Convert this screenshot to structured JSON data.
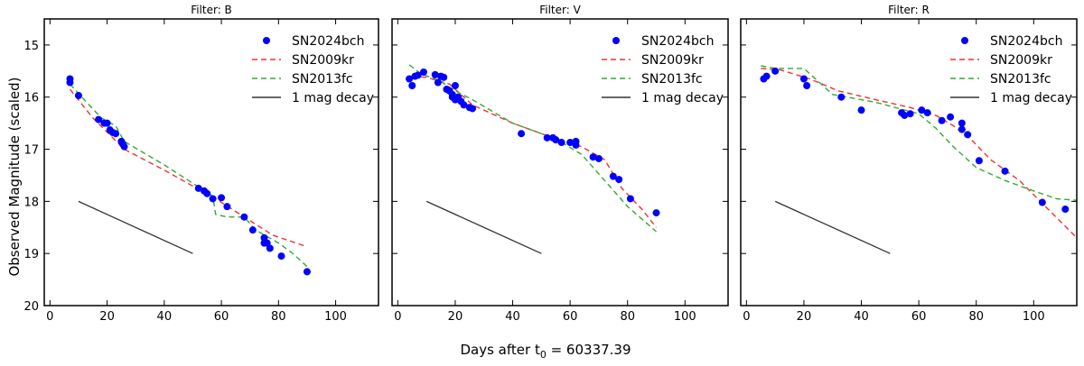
{
  "figure": {
    "ylabel": "Observed Magnitude (scaled)",
    "xlabel_prefix": "Days after t",
    "xlabel_subscript": "0",
    "xlabel_suffix": " = 60337.39"
  },
  "chart_data": [
    {
      "type": "scatter",
      "title": "Filter: B",
      "xlim": [
        -2,
        115
      ],
      "ylim": [
        20,
        14.5
      ],
      "ylim_note": "y axis inverted (brighter = up)",
      "x_ticks": [
        0,
        20,
        40,
        60,
        80,
        100
      ],
      "y_ticks": [
        15,
        16,
        17,
        18,
        19,
        20
      ],
      "legend_position": "top-right",
      "series": [
        {
          "name": "SN2024bch",
          "kind": "points",
          "color": "#0000ff",
          "x": [
            7,
            7,
            10,
            17,
            19,
            20,
            21,
            22,
            23,
            25,
            25.5,
            26,
            52,
            54,
            55,
            57,
            60,
            62,
            68,
            71,
            75,
            75,
            76,
            77,
            81,
            90
          ],
          "y": [
            15.65,
            15.72,
            15.97,
            16.43,
            16.5,
            16.5,
            16.63,
            16.68,
            16.7,
            16.85,
            16.9,
            16.95,
            17.75,
            17.8,
            17.85,
            17.95,
            17.93,
            18.1,
            18.3,
            18.55,
            18.7,
            18.8,
            18.8,
            18.9,
            19.05,
            19.35
          ]
        },
        {
          "name": "SN2009kr",
          "kind": "line",
          "color": "#ee3333",
          "dash": "6,4",
          "x": [
            7,
            15,
            26,
            40,
            58,
            68,
            78,
            90
          ],
          "y": [
            15.85,
            16.4,
            17.0,
            17.4,
            17.95,
            18.3,
            18.65,
            18.87
          ]
        },
        {
          "name": "SN2013fc",
          "kind": "line",
          "color": "#33aa33",
          "dash": "6,4",
          "x": [
            7,
            12,
            18,
            23,
            26,
            40,
            57,
            58,
            62,
            68,
            72,
            80,
            85,
            90
          ],
          "y": [
            15.75,
            16.05,
            16.4,
            16.55,
            16.85,
            17.3,
            17.9,
            18.25,
            18.3,
            18.3,
            18.55,
            18.8,
            19.0,
            19.25
          ]
        },
        {
          "name": "1 mag decay",
          "kind": "line",
          "color": "#333333",
          "dash": "",
          "x": [
            10,
            50
          ],
          "y": [
            18.0,
            19.0
          ]
        }
      ]
    },
    {
      "type": "scatter",
      "title": "Filter: V",
      "xlim": [
        -2,
        115
      ],
      "ylim": [
        20,
        14.5
      ],
      "x_ticks": [
        0,
        20,
        40,
        60,
        80,
        100
      ],
      "y_ticks": [
        15,
        16,
        17,
        18,
        19,
        20
      ],
      "legend_position": "top-right",
      "series": [
        {
          "name": "SN2024bch",
          "kind": "points",
          "color": "#0000ff",
          "x": [
            4,
            5,
            6,
            7,
            9,
            13,
            14,
            15,
            16,
            17,
            18,
            19,
            19,
            20,
            20,
            21,
            21,
            22,
            23,
            25,
            26,
            43,
            52,
            54,
            55,
            57,
            60,
            62,
            62,
            68,
            70,
            75,
            77,
            81,
            90
          ],
          "y": [
            15.65,
            15.78,
            15.6,
            15.58,
            15.52,
            15.57,
            15.72,
            15.6,
            15.62,
            15.85,
            15.88,
            15.95,
            16.0,
            15.78,
            16.05,
            16.0,
            16.02,
            16.08,
            16.15,
            16.2,
            16.22,
            16.7,
            16.78,
            16.78,
            16.82,
            16.87,
            16.87,
            16.85,
            16.92,
            17.15,
            17.18,
            17.52,
            17.58,
            17.95,
            18.22
          ]
        },
        {
          "name": "SN2009kr",
          "kind": "line",
          "color": "#ee3333",
          "dash": "6,4",
          "x": [
            5,
            10,
            18,
            26,
            40,
            55,
            64,
            72,
            78,
            85,
            90
          ],
          "y": [
            15.6,
            15.62,
            15.75,
            16.15,
            16.5,
            16.8,
            16.95,
            17.2,
            17.75,
            18.15,
            18.5
          ]
        },
        {
          "name": "SN2013fc",
          "kind": "line",
          "color": "#33aa33",
          "dash": "6,4",
          "x": [
            4,
            8,
            15,
            20,
            26,
            40,
            55,
            64,
            72,
            80,
            90
          ],
          "y": [
            15.38,
            15.55,
            15.7,
            15.88,
            16.05,
            16.5,
            16.8,
            17.1,
            17.6,
            18.1,
            18.58
          ]
        },
        {
          "name": "1 mag decay",
          "kind": "line",
          "color": "#333333",
          "dash": "",
          "x": [
            10,
            50
          ],
          "y": [
            18.0,
            19.0
          ]
        }
      ]
    },
    {
      "type": "scatter",
      "title": "Filter: R",
      "xlim": [
        -2,
        115
      ],
      "ylim": [
        20,
        14.5
      ],
      "x_ticks": [
        0,
        20,
        40,
        60,
        80,
        100
      ],
      "y_ticks": [
        15,
        16,
        17,
        18,
        19,
        20
      ],
      "legend_position": "top-right",
      "series": [
        {
          "name": "SN2024bch",
          "kind": "points",
          "color": "#0000ff",
          "x": [
            6,
            7,
            10,
            20,
            21,
            33,
            40,
            54,
            55,
            57,
            61,
            63,
            68,
            71,
            75,
            75,
            77,
            81,
            90,
            103,
            111
          ],
          "y": [
            15.65,
            15.6,
            15.5,
            15.65,
            15.78,
            16.0,
            16.25,
            16.3,
            16.35,
            16.32,
            16.25,
            16.3,
            16.45,
            16.38,
            16.5,
            16.62,
            16.72,
            17.22,
            17.42,
            18.02,
            18.15
          ]
        },
        {
          "name": "SN2009kr",
          "kind": "line",
          "color": "#ee3333",
          "dash": "6,4",
          "x": [
            5,
            12,
            22,
            32,
            45,
            57,
            66,
            72,
            78,
            85,
            95,
            105,
            115
          ],
          "y": [
            15.45,
            15.48,
            15.65,
            15.88,
            16.05,
            16.2,
            16.35,
            16.55,
            16.8,
            17.2,
            17.6,
            18.15,
            18.7
          ]
        },
        {
          "name": "SN2013fc",
          "kind": "line",
          "color": "#33aa33",
          "dash": "6,4",
          "x": [
            5,
            10,
            20,
            30,
            45,
            60,
            66,
            72,
            80,
            90,
            100,
            108,
            115
          ],
          "y": [
            15.4,
            15.45,
            15.45,
            15.95,
            16.1,
            16.32,
            16.6,
            16.95,
            17.35,
            17.6,
            17.8,
            17.95,
            17.98
          ]
        },
        {
          "name": "1 mag decay",
          "kind": "line",
          "color": "#333333",
          "dash": "",
          "x": [
            10,
            50
          ],
          "y": [
            18.0,
            19.0
          ]
        }
      ]
    }
  ]
}
